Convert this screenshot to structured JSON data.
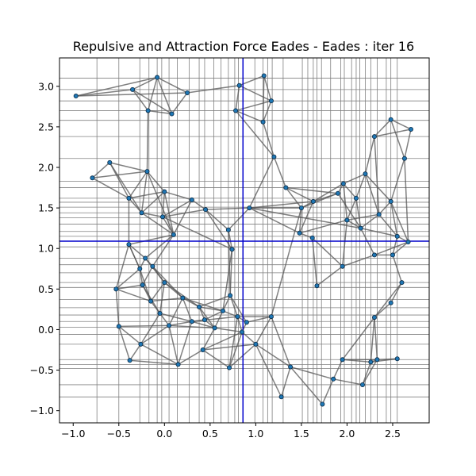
{
  "chart_data": {
    "type": "network",
    "title": "Repulsive and Attraction Force Eades - Eades : iter 16",
    "xlim": [
      -1.15,
      2.9
    ],
    "ylim": [
      -1.15,
      3.35
    ],
    "xticks": [
      -1.0,
      -0.5,
      0.0,
      0.5,
      1.0,
      1.5,
      2.0,
      2.5
    ],
    "xtick_labels": [
      "−1.0",
      "−0.5",
      "0.0",
      "0.5",
      "1.0",
      "1.5",
      "2.0",
      "2.5"
    ],
    "yticks": [
      -1.0,
      -0.5,
      0.0,
      0.5,
      1.0,
      1.5,
      2.0,
      2.5,
      3.0
    ],
    "ytick_labels": [
      "−1.0",
      "−0.5",
      "0.0",
      "0.5",
      "1.0",
      "1.5",
      "2.0",
      "2.5",
      "3.0"
    ],
    "crosshair": {
      "x": 0.86,
      "y": 1.09,
      "color": "#0000cc"
    },
    "grid_color": "#808080",
    "edge_color": "#555555",
    "node_color": "#1f77b4",
    "grid_x": [
      -0.74,
      -0.5,
      -0.27,
      -0.17,
      -0.08,
      -0.03,
      0.05,
      0.14,
      0.27,
      0.38,
      0.44,
      0.54,
      0.62,
      0.7,
      0.77,
      0.81,
      0.86,
      0.99,
      1.08,
      1.13,
      1.18,
      1.3,
      1.51,
      1.57,
      1.63,
      1.67,
      1.72,
      1.82,
      1.93,
      1.97,
      2.05,
      2.1,
      2.14,
      2.2,
      2.26,
      2.33,
      2.43,
      2.48,
      2.55
    ],
    "grid_y": [
      -0.83,
      -0.68,
      -0.48,
      -0.43,
      -0.37,
      -0.18,
      -0.06,
      0.03,
      0.1,
      0.18,
      0.27,
      0.37,
      0.52,
      0.58,
      0.7,
      0.8,
      0.88,
      1.02,
      1.15,
      1.21,
      1.3,
      1.38,
      1.44,
      1.51,
      1.57,
      1.62,
      1.75,
      1.83,
      2.11,
      2.38,
      2.58,
      2.7,
      2.82,
      2.96,
      3.1
    ],
    "nodes": [
      [
        -0.97,
        2.88
      ],
      [
        -0.35,
        2.96
      ],
      [
        -0.08,
        3.11
      ],
      [
        0.25,
        2.92
      ],
      [
        0.08,
        2.66
      ],
      [
        -0.18,
        2.7
      ],
      [
        0.82,
        3.01
      ],
      [
        1.09,
        3.13
      ],
      [
        1.17,
        2.82
      ],
      [
        0.78,
        2.7
      ],
      [
        1.08,
        2.56
      ],
      [
        1.2,
        2.13
      ],
      [
        -0.6,
        2.06
      ],
      [
        -0.79,
        1.87
      ],
      [
        -0.19,
        1.95
      ],
      [
        -0.39,
        1.62
      ],
      [
        -0.25,
        1.44
      ],
      [
        0.0,
        1.7
      ],
      [
        0.3,
        1.6
      ],
      [
        0.45,
        1.48
      ],
      [
        -0.02,
        1.39
      ],
      [
        0.7,
        1.23
      ],
      [
        0.74,
        0.99
      ],
      [
        0.93,
        1.5
      ],
      [
        1.33,
        1.75
      ],
      [
        1.5,
        1.5
      ],
      [
        1.48,
        1.19
      ],
      [
        1.63,
        1.58
      ],
      [
        1.67,
        0.54
      ],
      [
        1.9,
        1.68
      ],
      [
        1.96,
        1.8
      ],
      [
        2.1,
        1.62
      ],
      [
        2.2,
        1.92
      ],
      [
        2.0,
        1.35
      ],
      [
        2.15,
        1.25
      ],
      [
        2.35,
        1.42
      ],
      [
        2.48,
        1.58
      ],
      [
        2.55,
        1.15
      ],
      [
        2.67,
        1.08
      ],
      [
        2.3,
        2.38
      ],
      [
        2.48,
        2.59
      ],
      [
        2.7,
        2.47
      ],
      [
        2.63,
        2.11
      ],
      [
        2.3,
        0.92
      ],
      [
        2.5,
        0.92
      ],
      [
        2.6,
        0.58
      ],
      [
        2.48,
        0.33
      ],
      [
        1.95,
        0.78
      ],
      [
        1.62,
        1.13
      ],
      [
        -0.39,
        1.05
      ],
      [
        -0.21,
        0.88
      ],
      [
        -0.13,
        0.78
      ],
      [
        -0.27,
        0.75
      ],
      [
        -0.53,
        0.5
      ],
      [
        -0.24,
        0.55
      ],
      [
        0.0,
        0.58
      ],
      [
        0.1,
        1.17
      ],
      [
        0.2,
        0.39
      ],
      [
        0.38,
        0.28
      ],
      [
        0.44,
        0.12
      ],
      [
        0.64,
        0.23
      ],
      [
        0.72,
        0.42
      ],
      [
        0.8,
        0.16
      ],
      [
        0.85,
        -0.03
      ],
      [
        0.9,
        0.09
      ],
      [
        -0.5,
        0.04
      ],
      [
        -0.38,
        -0.38
      ],
      [
        -0.26,
        -0.18
      ],
      [
        0.15,
        -0.43
      ],
      [
        0.42,
        -0.25
      ],
      [
        0.71,
        -0.47
      ],
      [
        1.0,
        -0.18
      ],
      [
        1.17,
        0.16
      ],
      [
        1.28,
        -0.83
      ],
      [
        1.38,
        -0.46
      ],
      [
        1.73,
        -0.92
      ],
      [
        1.85,
        -0.61
      ],
      [
        1.95,
        -0.37
      ],
      [
        2.17,
        -0.68
      ],
      [
        2.26,
        -0.4
      ],
      [
        2.33,
        -0.37
      ],
      [
        2.55,
        -0.36
      ],
      [
        2.3,
        0.15
      ],
      [
        -0.05,
        0.2
      ],
      [
        0.55,
        0.02
      ],
      [
        0.05,
        0.05
      ],
      [
        0.3,
        0.1
      ],
      [
        -0.15,
        0.35
      ]
    ],
    "edges": [
      [
        0,
        1
      ],
      [
        0,
        2
      ],
      [
        0,
        3
      ],
      [
        1,
        2
      ],
      [
        1,
        5
      ],
      [
        1,
        4
      ],
      [
        2,
        3
      ],
      [
        2,
        4
      ],
      [
        2,
        5
      ],
      [
        3,
        4
      ],
      [
        3,
        6
      ],
      [
        4,
        5
      ],
      [
        6,
        7
      ],
      [
        6,
        9
      ],
      [
        6,
        8
      ],
      [
        7,
        8
      ],
      [
        7,
        10
      ],
      [
        8,
        9
      ],
      [
        8,
        10
      ],
      [
        9,
        10
      ],
      [
        9,
        11
      ],
      [
        10,
        11
      ],
      [
        11,
        24
      ],
      [
        11,
        23
      ],
      [
        12,
        13
      ],
      [
        12,
        14
      ],
      [
        12,
        15
      ],
      [
        12,
        16
      ],
      [
        13,
        14
      ],
      [
        13,
        15
      ],
      [
        14,
        15
      ],
      [
        14,
        16
      ],
      [
        14,
        17
      ],
      [
        15,
        16
      ],
      [
        15,
        17
      ],
      [
        16,
        17
      ],
      [
        16,
        20
      ],
      [
        17,
        18
      ],
      [
        17,
        20
      ],
      [
        18,
        19
      ],
      [
        18,
        20
      ],
      [
        19,
        20
      ],
      [
        19,
        21
      ],
      [
        21,
        22
      ],
      [
        21,
        23
      ],
      [
        19,
        23
      ],
      [
        20,
        56
      ],
      [
        16,
        56
      ],
      [
        15,
        49
      ],
      [
        20,
        22
      ],
      [
        5,
        14
      ],
      [
        23,
        25
      ],
      [
        23,
        26
      ],
      [
        24,
        25
      ],
      [
        24,
        27
      ],
      [
        24,
        29
      ],
      [
        25,
        27
      ],
      [
        25,
        26
      ],
      [
        25,
        29
      ],
      [
        26,
        27
      ],
      [
        26,
        48
      ],
      [
        27,
        29
      ],
      [
        27,
        30
      ],
      [
        29,
        30
      ],
      [
        30,
        31
      ],
      [
        30,
        32
      ],
      [
        31,
        32
      ],
      [
        31,
        33
      ],
      [
        31,
        34
      ],
      [
        32,
        35
      ],
      [
        32,
        36
      ],
      [
        33,
        34
      ],
      [
        33,
        35
      ],
      [
        34,
        35
      ],
      [
        34,
        37
      ],
      [
        35,
        36
      ],
      [
        35,
        37
      ],
      [
        36,
        37
      ],
      [
        36,
        38
      ],
      [
        37,
        38
      ],
      [
        37,
        44
      ],
      [
        38,
        44
      ],
      [
        38,
        43
      ],
      [
        32,
        39
      ],
      [
        39,
        40
      ],
      [
        39,
        41
      ],
      [
        40,
        41
      ],
      [
        40,
        42
      ],
      [
        41,
        42
      ],
      [
        42,
        38
      ],
      [
        42,
        36
      ],
      [
        39,
        35
      ],
      [
        43,
        44
      ],
      [
        43,
        47
      ],
      [
        44,
        45
      ],
      [
        45,
        46
      ],
      [
        47,
        48
      ],
      [
        47,
        33
      ],
      [
        48,
        28
      ],
      [
        28,
        47
      ],
      [
        26,
        33
      ],
      [
        29,
        34
      ],
      [
        30,
        33
      ],
      [
        23,
        27
      ],
      [
        23,
        34
      ],
      [
        43,
        34
      ],
      [
        46,
        82
      ],
      [
        45,
        82
      ],
      [
        82,
        80
      ],
      [
        82,
        79
      ],
      [
        49,
        50
      ],
      [
        49,
        52
      ],
      [
        49,
        53
      ],
      [
        50,
        51
      ],
      [
        50,
        52
      ],
      [
        51,
        54
      ],
      [
        51,
        55
      ],
      [
        52,
        53
      ],
      [
        52,
        54
      ],
      [
        53,
        54
      ],
      [
        53,
        65
      ],
      [
        54,
        87
      ],
      [
        55,
        57
      ],
      [
        55,
        83
      ],
      [
        55,
        87
      ],
      [
        56,
        49
      ],
      [
        56,
        50
      ],
      [
        56,
        51
      ],
      [
        57,
        58
      ],
      [
        57,
        86
      ],
      [
        58,
        59
      ],
      [
        58,
        60
      ],
      [
        59,
        60
      ],
      [
        59,
        84
      ],
      [
        60,
        61
      ],
      [
        60,
        62
      ],
      [
        61,
        62
      ],
      [
        61,
        22
      ],
      [
        62,
        63
      ],
      [
        62,
        64
      ],
      [
        63,
        64
      ],
      [
        63,
        71
      ],
      [
        64,
        72
      ],
      [
        65,
        66
      ],
      [
        65,
        67
      ],
      [
        66,
        67
      ],
      [
        67,
        83
      ],
      [
        67,
        68
      ],
      [
        68,
        69
      ],
      [
        68,
        85
      ],
      [
        69,
        70
      ],
      [
        69,
        84
      ],
      [
        70,
        71
      ],
      [
        70,
        63
      ],
      [
        71,
        72
      ],
      [
        71,
        74
      ],
      [
        72,
        74
      ],
      [
        73,
        74
      ],
      [
        73,
        71
      ],
      [
        74,
        75
      ],
      [
        74,
        76
      ],
      [
        75,
        76
      ],
      [
        76,
        77
      ],
      [
        76,
        78
      ],
      [
        77,
        79
      ],
      [
        77,
        80
      ],
      [
        78,
        79
      ],
      [
        79,
        80
      ],
      [
        80,
        81
      ],
      [
        81,
        79
      ],
      [
        77,
        82
      ],
      [
        78,
        80
      ],
      [
        83,
        85
      ],
      [
        85,
        86
      ],
      [
        86,
        84
      ],
      [
        84,
        63
      ],
      [
        83,
        87
      ],
      [
        87,
        57
      ],
      [
        85,
        57
      ],
      [
        86,
        59
      ],
      [
        53,
        87
      ],
      [
        65,
        85
      ],
      [
        66,
        68
      ],
      [
        69,
        71
      ],
      [
        60,
        84
      ],
      [
        61,
        64
      ],
      [
        58,
        61
      ],
      [
        22,
        60
      ],
      [
        21,
        61
      ],
      [
        49,
        52
      ],
      [
        14,
        56
      ],
      [
        18,
        56
      ],
      [
        19,
        22
      ],
      [
        17,
        56
      ],
      [
        72,
        25
      ],
      [
        72,
        62
      ],
      [
        55,
        58
      ],
      [
        50,
        55
      ],
      [
        54,
        83
      ],
      [
        83,
        86
      ],
      [
        85,
        84
      ],
      [
        58,
        84
      ],
      [
        86,
        62
      ],
      [
        57,
        60
      ],
      [
        51,
        57
      ],
      [
        52,
        87
      ],
      [
        67,
        85
      ],
      [
        68,
        86
      ],
      [
        69,
        63
      ],
      [
        70,
        62
      ]
    ]
  }
}
